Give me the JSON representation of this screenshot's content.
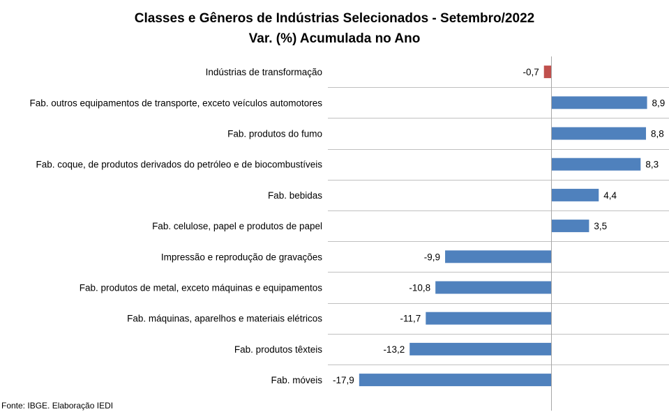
{
  "chart_data": {
    "type": "bar",
    "orientation": "horizontal",
    "title": "Classes e Gêneros de Indústrias Selecionados - Setembro/2022",
    "subtitle": "Var. (%) Acumulada no Ano",
    "categories": [
      "Indústrias de transformação",
      "Fab. outros equipamentos de transporte, exceto veículos automotores",
      "Fab. produtos do fumo",
      "Fab. coque, de produtos derivados do petróleo e de biocombustíveis",
      "Fab. bebidas",
      "Fab. celulose, papel e produtos de papel",
      "Impressão e reprodução de gravações",
      "Fab. produtos de metal, exceto máquinas e equipamentos",
      "Fab. máquinas, aparelhos e materiais elétricos",
      "Fab. produtos têxteis",
      "Fab. móveis"
    ],
    "values": [
      -0.7,
      8.9,
      8.8,
      8.3,
      4.4,
      3.5,
      -9.9,
      -10.8,
      -11.7,
      -13.2,
      -17.9
    ],
    "value_labels": [
      "-0,7",
      "8,9",
      "8,8",
      "8,3",
      "4,4",
      "3,5",
      "-9,9",
      "-10,8",
      "-11,7",
      "-13,2",
      "-17,9"
    ],
    "highlight_index": 0,
    "colors": {
      "bar": "#4f81bd",
      "highlight": "#c0504d",
      "gridline": "#c0c0c0",
      "axis": "#a6a6a6"
    },
    "grid": true,
    "legend": "none"
  },
  "footer": {
    "source": "Fonte: IBGE. Elaboração IEDI"
  }
}
